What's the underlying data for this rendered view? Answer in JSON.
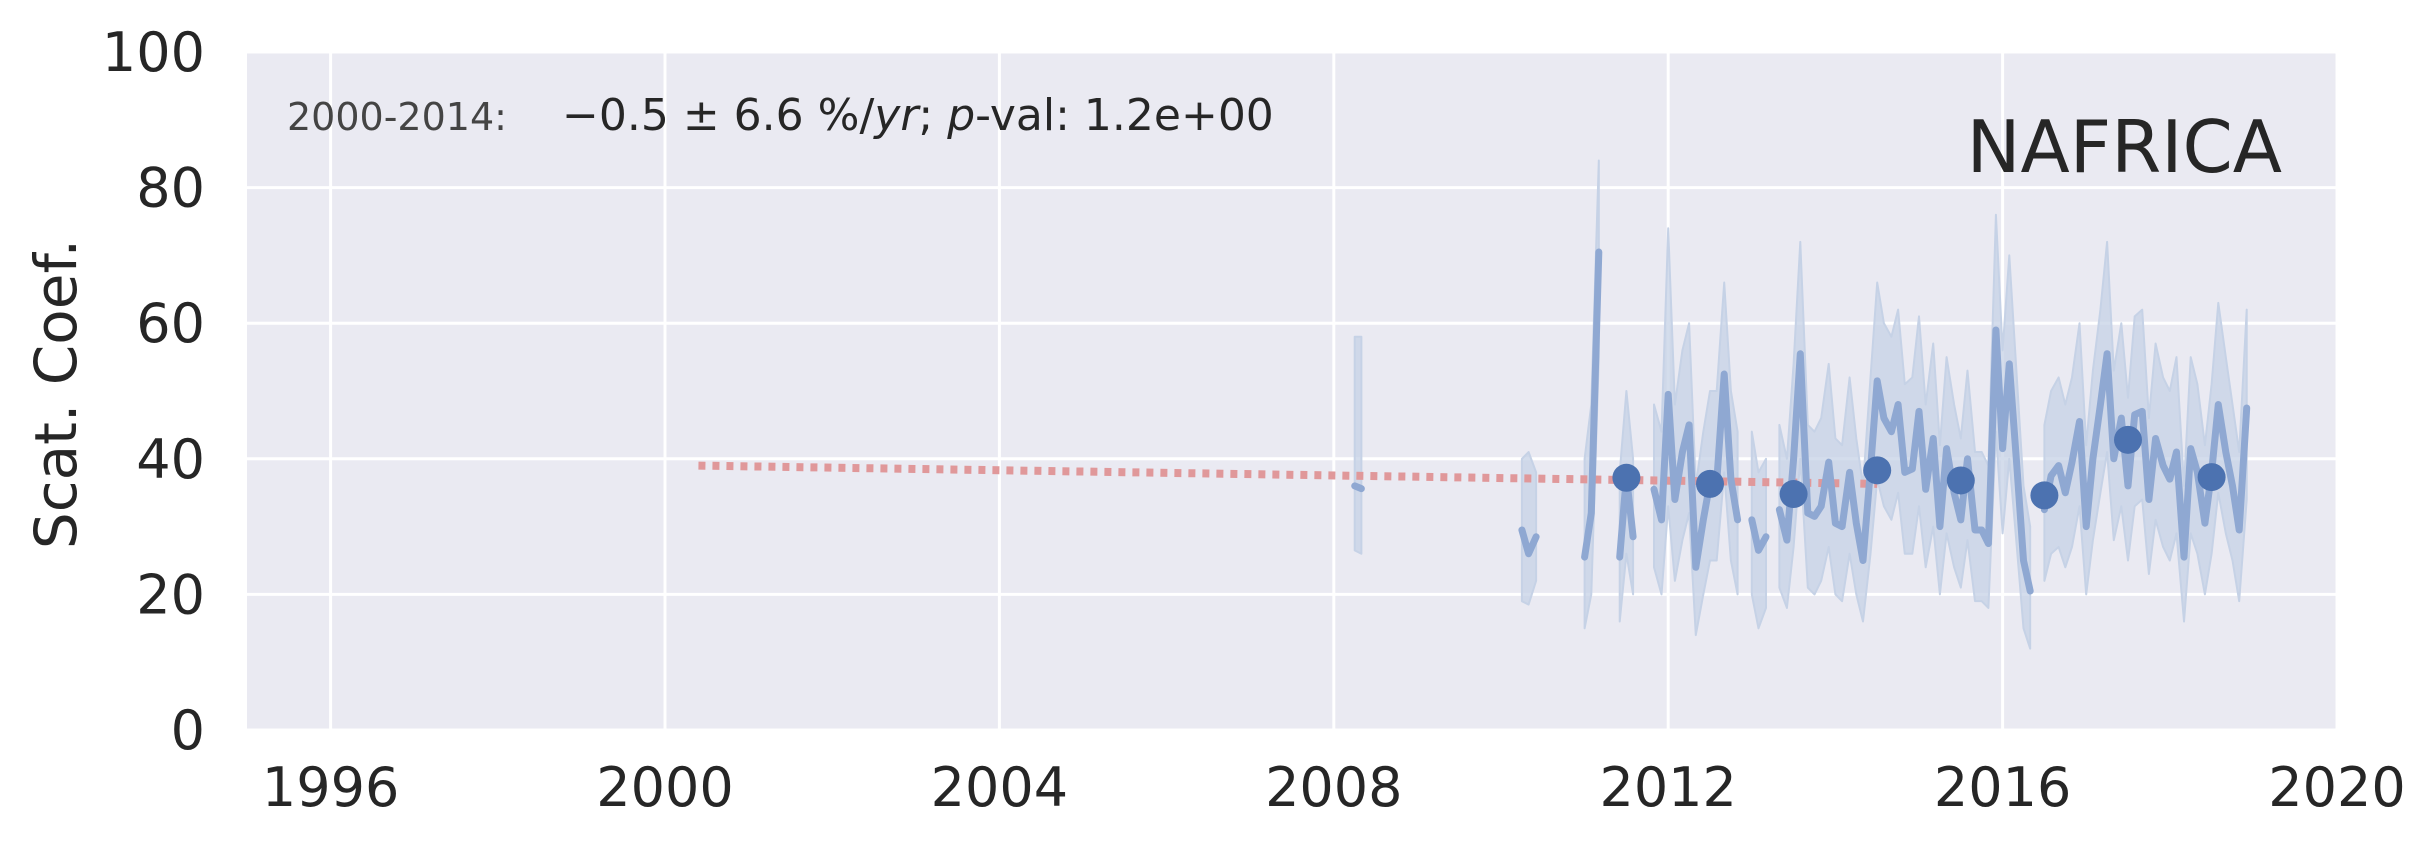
{
  "chart_data": {
    "type": "line",
    "ylabel": "Scat. Coef.",
    "xlabel": "",
    "region_label": "NAFRICA",
    "trend_annotation": {
      "period": "2000-2014:",
      "stats_prefix": "−0.5 ± 6.6 %/",
      "stats_unit": "yr",
      "stats_sep": "; ",
      "stats_p": "p",
      "stats_suffix": "-val: 1.2e+00"
    },
    "xlim": [
      1995,
      2020
    ],
    "ylim": [
      0,
      100
    ],
    "x_ticks": [
      1996,
      2000,
      2004,
      2008,
      2012,
      2016,
      2020
    ],
    "x_tick_labels": [
      "1996",
      "2000",
      "2004",
      "2008",
      "2012",
      "2016",
      "2020"
    ],
    "y_ticks": [
      0,
      20,
      40,
      60,
      80,
      100
    ],
    "y_tick_labels": [
      "0",
      "20",
      "40",
      "60",
      "80",
      "100"
    ],
    "grid": true,
    "colors": {
      "background": "#eaeaf2",
      "grid": "#ffffff",
      "monthly_line": "#8fa8d2",
      "band": "#c6d2e6",
      "annual_points": "#4c72b0",
      "trend": "#e0989a",
      "text": "#262626"
    },
    "series": [
      {
        "kind": "monthly",
        "segments": [
          [
            [
              2008.25,
              36.0
            ],
            [
              2008.33,
              35.6
            ]
          ],
          [
            [
              2010.25,
              29.5
            ],
            [
              2010.33,
              26.0
            ],
            [
              2010.42,
              28.5
            ]
          ],
          [
            [
              2011.0,
              25.5
            ],
            [
              2011.08,
              32.0
            ],
            [
              2011.17,
              70.5
            ]
          ],
          [
            [
              2011.42,
              25.5
            ],
            [
              2011.5,
              37.5
            ],
            [
              2011.58,
              28.5
            ]
          ],
          [
            [
              2011.83,
              35.5
            ],
            [
              2011.92,
              31.0
            ],
            [
              2012.0,
              49.5
            ],
            [
              2012.08,
              34.0
            ],
            [
              2012.17,
              41.0
            ],
            [
              2012.25,
              45.0
            ],
            [
              2012.33,
              24.0
            ],
            [
              2012.42,
              31.0
            ],
            [
              2012.5,
              36.5
            ],
            [
              2012.58,
              36.5
            ],
            [
              2012.67,
              52.5
            ],
            [
              2012.75,
              37.0
            ],
            [
              2012.83,
              31.0
            ]
          ],
          [
            [
              2013.0,
              31.0
            ],
            [
              2013.08,
              26.5
            ],
            [
              2013.17,
              28.5
            ]
          ],
          [
            [
              2013.33,
              32.5
            ],
            [
              2013.42,
              28.0
            ],
            [
              2013.5,
              40.0
            ],
            [
              2013.58,
              55.5
            ],
            [
              2013.67,
              32.0
            ],
            [
              2013.75,
              31.5
            ],
            [
              2013.83,
              33.0
            ],
            [
              2013.92,
              39.5
            ],
            [
              2014.0,
              30.5
            ],
            [
              2014.08,
              30.0
            ],
            [
              2014.17,
              38.0
            ],
            [
              2014.25,
              30.5
            ],
            [
              2014.33,
              25.0
            ],
            [
              2014.42,
              38.5
            ],
            [
              2014.5,
              51.5
            ],
            [
              2014.58,
              46.0
            ],
            [
              2014.67,
              44.0
            ],
            [
              2014.75,
              48.0
            ],
            [
              2014.83,
              38.0
            ],
            [
              2014.92,
              38.5
            ],
            [
              2015.0,
              47.0
            ],
            [
              2015.08,
              35.5
            ],
            [
              2015.17,
              43.0
            ],
            [
              2015.25,
              30.0
            ],
            [
              2015.33,
              41.5
            ],
            [
              2015.42,
              35.0
            ],
            [
              2015.5,
              31.0
            ],
            [
              2015.58,
              40.0
            ],
            [
              2015.67,
              29.5
            ],
            [
              2015.75,
              29.5
            ],
            [
              2015.83,
              27.5
            ],
            [
              2015.92,
              59.0
            ],
            [
              2016.0,
              41.5
            ],
            [
              2016.08,
              54.0
            ],
            [
              2016.17,
              39.0
            ],
            [
              2016.25,
              25.0
            ],
            [
              2016.33,
              20.5
            ]
          ],
          [
            [
              2016.5,
              32.5
            ],
            [
              2016.58,
              37.5
            ],
            [
              2016.67,
              39.0
            ],
            [
              2016.75,
              35.0
            ],
            [
              2016.83,
              39.5
            ],
            [
              2016.92,
              45.5
            ],
            [
              2017.0,
              30.0
            ],
            [
              2017.08,
              40.0
            ],
            [
              2017.17,
              48.0
            ],
            [
              2017.25,
              55.5
            ],
            [
              2017.33,
              40.0
            ],
            [
              2017.42,
              46.0
            ],
            [
              2017.5,
              36.0
            ],
            [
              2017.58,
              46.5
            ],
            [
              2017.67,
              47.0
            ],
            [
              2017.75,
              34.0
            ],
            [
              2017.83,
              43.0
            ],
            [
              2017.92,
              39.0
            ],
            [
              2018.0,
              37.0
            ],
            [
              2018.08,
              41.0
            ],
            [
              2018.17,
              25.5
            ],
            [
              2018.25,
              41.5
            ],
            [
              2018.33,
              38.0
            ],
            [
              2018.42,
              30.5
            ],
            [
              2018.5,
              38.0
            ],
            [
              2018.58,
              48.0
            ],
            [
              2018.67,
              41.0
            ],
            [
              2018.75,
              36.0
            ],
            [
              2018.83,
              29.5
            ],
            [
              2018.92,
              47.5
            ]
          ]
        ],
        "band": [
          [
            [
              2008.25,
              26.5,
              58.0
            ],
            [
              2008.33,
              26.0,
              58.0
            ]
          ],
          [
            [
              2010.25,
              19.0,
              40.0
            ],
            [
              2010.33,
              18.5,
              41.0
            ],
            [
              2010.42,
              22.0,
              38.0
            ]
          ],
          [
            [
              2011.0,
              15.0,
              40.0
            ],
            [
              2011.08,
              20.0,
              48.0
            ],
            [
              2011.17,
              55.0,
              84.0
            ]
          ],
          [
            [
              2011.42,
              16.0,
              38.0
            ],
            [
              2011.5,
              26.0,
              50.0
            ],
            [
              2011.58,
              20.0,
              40.0
            ]
          ],
          [
            [
              2011.83,
              24.0,
              48.0
            ],
            [
              2011.92,
              20.0,
              44.0
            ],
            [
              2012.0,
              33.0,
              74.0
            ],
            [
              2012.08,
              22.0,
              48.0
            ],
            [
              2012.17,
              28.0,
              56.0
            ],
            [
              2012.25,
              32.0,
              60.0
            ],
            [
              2012.33,
              14.0,
              36.0
            ],
            [
              2012.42,
              20.0,
              44.0
            ],
            [
              2012.5,
              25.0,
              50.0
            ],
            [
              2012.58,
              25.0,
              50.0
            ],
            [
              2012.67,
              38.0,
              66.0
            ],
            [
              2012.75,
              25.0,
              50.0
            ],
            [
              2012.83,
              20.0,
              44.0
            ]
          ],
          [
            [
              2013.0,
              20.0,
              44.0
            ],
            [
              2013.08,
              15.0,
              38.0
            ],
            [
              2013.17,
              18.0,
              40.0
            ]
          ],
          [
            [
              2013.33,
              21.0,
              45.0
            ],
            [
              2013.42,
              18.0,
              40.0
            ],
            [
              2013.5,
              27.0,
              54.0
            ],
            [
              2013.58,
              40.0,
              72.0
            ],
            [
              2013.67,
              21.0,
              45.0
            ],
            [
              2013.75,
              20.0,
              44.0
            ],
            [
              2013.83,
              22.0,
              46.0
            ],
            [
              2013.92,
              27.0,
              54.0
            ],
            [
              2014.0,
              20.0,
              43.0
            ],
            [
              2014.08,
              19.0,
              42.0
            ],
            [
              2014.17,
              26.0,
              52.0
            ],
            [
              2014.25,
              20.0,
              43.0
            ],
            [
              2014.33,
              16.0,
              36.0
            ],
            [
              2014.42,
              26.0,
              52.0
            ],
            [
              2014.5,
              37.0,
              66.0
            ],
            [
              2014.58,
              33.0,
              60.0
            ],
            [
              2014.67,
              31.0,
              58.0
            ],
            [
              2014.75,
              35.0,
              62.0
            ],
            [
              2014.83,
              26.0,
              51.0
            ],
            [
              2014.92,
              26.0,
              52.0
            ],
            [
              2015.0,
              33.0,
              61.0
            ],
            [
              2015.08,
              24.0,
              48.0
            ],
            [
              2015.17,
              30.0,
              57.0
            ],
            [
              2015.25,
              20.0,
              42.0
            ],
            [
              2015.33,
              29.0,
              55.0
            ],
            [
              2015.42,
              24.0,
              48.0
            ],
            [
              2015.5,
              21.0,
              43.0
            ],
            [
              2015.58,
              28.0,
              53.0
            ],
            [
              2015.67,
              19.0,
              41.0
            ],
            [
              2015.75,
              19.0,
              41.0
            ],
            [
              2015.83,
              18.0,
              39.0
            ],
            [
              2015.92,
              44.0,
              76.0
            ],
            [
              2016.0,
              29.0,
              56.0
            ],
            [
              2016.08,
              40.0,
              70.0
            ],
            [
              2016.17,
              27.0,
              52.0
            ],
            [
              2016.25,
              15.0,
              36.0
            ],
            [
              2016.33,
              12.0,
              30.0
            ]
          ],
          [
            [
              2016.5,
              22.0,
              45.0
            ],
            [
              2016.58,
              26.0,
              50.0
            ],
            [
              2016.67,
              27.0,
              52.0
            ],
            [
              2016.75,
              24.0,
              48.0
            ],
            [
              2016.83,
              27.0,
              52.0
            ],
            [
              2016.92,
              33.0,
              60.0
            ],
            [
              2017.0,
              20.0,
              42.0
            ],
            [
              2017.08,
              28.0,
              53.0
            ],
            [
              2017.17,
              35.0,
              62.0
            ],
            [
              2017.25,
              41.0,
              72.0
            ],
            [
              2017.33,
              28.0,
              53.0
            ],
            [
              2017.42,
              33.0,
              60.0
            ],
            [
              2017.5,
              25.0,
              49.0
            ],
            [
              2017.58,
              33.0,
              61.0
            ],
            [
              2017.67,
              34.0,
              62.0
            ],
            [
              2017.75,
              23.0,
              46.0
            ],
            [
              2017.83,
              31.0,
              57.0
            ],
            [
              2017.92,
              27.0,
              52.0
            ],
            [
              2018.0,
              25.0,
              50.0
            ],
            [
              2018.08,
              29.0,
              55.0
            ],
            [
              2018.17,
              16.0,
              36.0
            ],
            [
              2018.25,
              29.0,
              55.0
            ],
            [
              2018.33,
              26.0,
              51.0
            ],
            [
              2018.42,
              20.0,
              42.0
            ],
            [
              2018.5,
              26.0,
              51.0
            ],
            [
              2018.58,
              35.0,
              63.0
            ],
            [
              2018.67,
              29.0,
              55.0
            ],
            [
              2018.75,
              25.0,
              48.0
            ],
            [
              2018.83,
              19.0,
              41.0
            ],
            [
              2018.92,
              34.0,
              62.0
            ]
          ]
        ]
      },
      {
        "kind": "annual",
        "points": [
          [
            2011.5,
            37.2
          ],
          [
            2012.5,
            36.3
          ],
          [
            2013.5,
            34.8
          ],
          [
            2014.5,
            38.3
          ],
          [
            2015.5,
            36.8
          ],
          [
            2016.5,
            34.6
          ],
          [
            2017.5,
            42.8
          ],
          [
            2018.5,
            37.3
          ]
        ]
      },
      {
        "kind": "trend",
        "points": [
          [
            2000.4,
            39.0
          ],
          [
            2014.5,
            36.3
          ]
        ]
      }
    ]
  }
}
